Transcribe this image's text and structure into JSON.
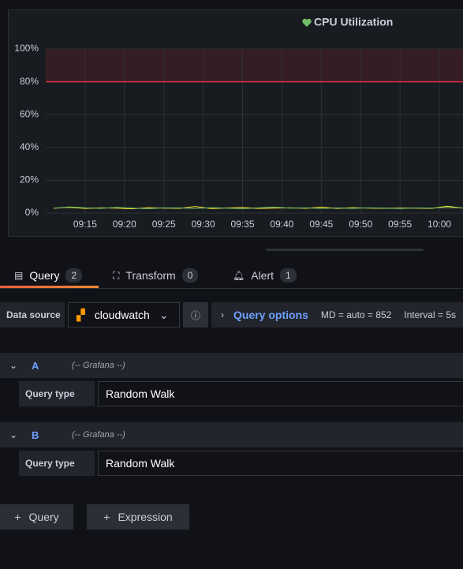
{
  "chart_data": {
    "type": "line",
    "title": "CPU Utilization",
    "x": [
      "09:11",
      "09:13",
      "09:15",
      "09:17",
      "09:19",
      "09:21",
      "09:23",
      "09:25",
      "09:27",
      "09:29",
      "09:31",
      "09:33",
      "09:35",
      "09:37",
      "09:39",
      "09:41",
      "09:43",
      "09:45",
      "09:47",
      "09:49",
      "09:51",
      "09:53",
      "09:55",
      "09:57",
      "09:59",
      "10:01",
      "10:03"
    ],
    "series": [
      {
        "color": "#fade2a",
        "values": [
          3,
          3.5,
          2.8,
          3.2,
          3,
          2.6,
          3.3,
          3,
          2.9,
          4,
          2.7,
          3.1,
          3.4,
          2.8,
          3,
          3.2,
          2.9,
          3.6,
          2.8,
          3.3,
          3,
          2.9,
          3.1,
          3,
          2.8,
          4.2,
          3
        ]
      },
      {
        "color": "#73bf69",
        "values": [
          2.8,
          3.8,
          3.2,
          2.9,
          3.4,
          3,
          2.7,
          3.2,
          3.1,
          2.8,
          3.3,
          3,
          2.7,
          3.2,
          3.6,
          3,
          3.2,
          2.8,
          3.1,
          2.9,
          3.2,
          3,
          2.8,
          3.1,
          3,
          3.4,
          3.1
        ]
      }
    ],
    "xlim": [
      "09:10",
      "10:03"
    ],
    "xticks": [
      "09:15",
      "09:20",
      "09:25",
      "09:30",
      "09:35",
      "09:40",
      "09:45",
      "09:50",
      "09:55",
      "10:00"
    ],
    "ylim": [
      0,
      100
    ],
    "yticks": [
      {
        "value": 0,
        "label": "0%"
      },
      {
        "value": 20,
        "label": "20%"
      },
      {
        "value": 40,
        "label": "40%"
      },
      {
        "value": 60,
        "label": "60%"
      },
      {
        "value": 80,
        "label": "80%"
      },
      {
        "value": 100,
        "label": "100%"
      }
    ],
    "threshold": {
      "value": 80,
      "color": "#e02f44"
    },
    "grid": true
  },
  "tabs": [
    {
      "label": "Query",
      "count": 2
    },
    {
      "label": "Transform",
      "count": 0
    },
    {
      "label": "Alert",
      "count": 1
    }
  ],
  "toolbar": {
    "data_source_label": "Data source",
    "data_source": "cloudwatch",
    "query_options": "Query options",
    "md": "MD = auto = 852",
    "interval": "Interval = 5s"
  },
  "queries": [
    {
      "ref": "A",
      "source": "(-- Grafana --)",
      "field_label": "Query type",
      "field_value": "Random Walk"
    },
    {
      "ref": "B",
      "source": "(-- Grafana --)",
      "field_label": "Query type",
      "field_value": "Random Walk"
    }
  ],
  "buttons": [
    "Query",
    "Expression"
  ]
}
